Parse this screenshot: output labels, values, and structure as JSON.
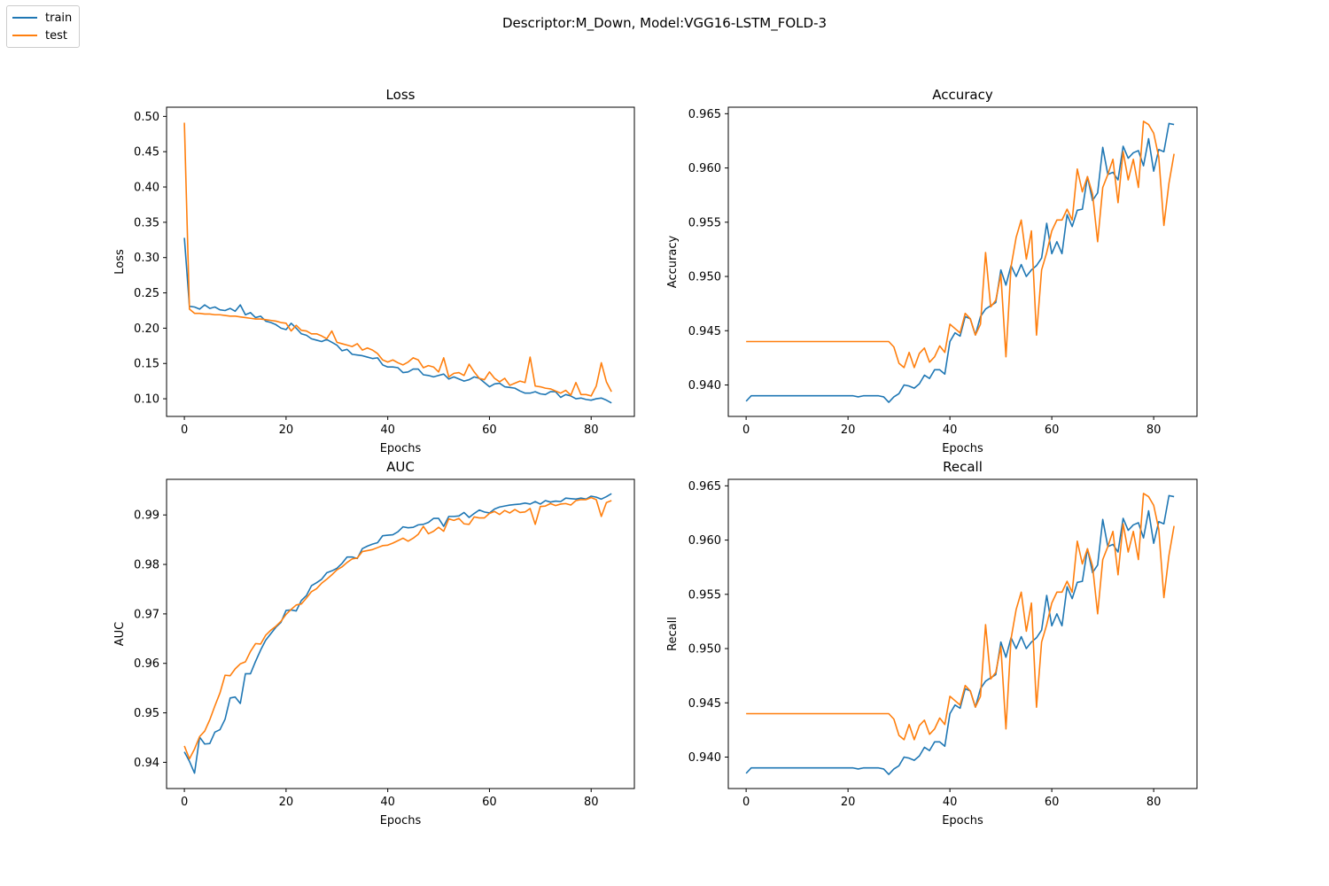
{
  "figure": {
    "suptitle": "Descriptor:M_Down, Model:VGG16-LSTM_FOLD-3",
    "legend": [
      {
        "label": "train",
        "color": "#1f77b4"
      },
      {
        "label": "test",
        "color": "#ff7f0e"
      }
    ]
  },
  "chart_data": [
    {
      "type": "line",
      "title": "Loss",
      "xlabel": "Epochs",
      "ylabel": "Loss",
      "xlim": [
        -3.5,
        88.5
      ],
      "ylim": [
        0.075,
        0.513
      ],
      "xticks": [
        0,
        20,
        40,
        60,
        80
      ],
      "yticks": [
        0.1,
        0.15,
        0.2,
        0.25,
        0.3,
        0.35,
        0.4,
        0.45,
        0.5
      ],
      "ytick_labels": [
        "0.10",
        "0.15",
        "0.20",
        "0.25",
        "0.30",
        "0.35",
        "0.40",
        "0.45",
        "0.50"
      ],
      "series": [
        {
          "name": "train",
          "color": "#1f77b4",
          "values": [
            0.328,
            0.231,
            0.23,
            0.227,
            0.233,
            0.228,
            0.23,
            0.226,
            0.225,
            0.228,
            0.224,
            0.233,
            0.219,
            0.222,
            0.215,
            0.217,
            0.21,
            0.208,
            0.205,
            0.2,
            0.198,
            0.207,
            0.2,
            0.192,
            0.19,
            0.185,
            0.183,
            0.181,
            0.184,
            0.18,
            0.176,
            0.168,
            0.17,
            0.163,
            0.162,
            0.161,
            0.159,
            0.157,
            0.158,
            0.148,
            0.145,
            0.145,
            0.144,
            0.137,
            0.138,
            0.142,
            0.142,
            0.134,
            0.133,
            0.131,
            0.133,
            0.135,
            0.128,
            0.131,
            0.128,
            0.125,
            0.127,
            0.131,
            0.129,
            0.123,
            0.117,
            0.121,
            0.122,
            0.117,
            0.116,
            0.115,
            0.111,
            0.108,
            0.108,
            0.11,
            0.107,
            0.106,
            0.11,
            0.11,
            0.102,
            0.106,
            0.104,
            0.1,
            0.101,
            0.099,
            0.098,
            0.1,
            0.101,
            0.098,
            0.094
          ]
        },
        {
          "name": "test",
          "color": "#ff7f0e",
          "values": [
            0.491,
            0.227,
            0.221,
            0.221,
            0.22,
            0.22,
            0.219,
            0.219,
            0.218,
            0.217,
            0.217,
            0.216,
            0.215,
            0.214,
            0.213,
            0.213,
            0.212,
            0.211,
            0.21,
            0.208,
            0.207,
            0.196,
            0.204,
            0.197,
            0.196,
            0.192,
            0.192,
            0.189,
            0.185,
            0.196,
            0.18,
            0.178,
            0.176,
            0.174,
            0.178,
            0.169,
            0.172,
            0.169,
            0.164,
            0.155,
            0.152,
            0.155,
            0.151,
            0.148,
            0.152,
            0.158,
            0.155,
            0.144,
            0.147,
            0.145,
            0.138,
            0.158,
            0.131,
            0.136,
            0.137,
            0.133,
            0.149,
            0.138,
            0.129,
            0.127,
            0.138,
            0.129,
            0.124,
            0.129,
            0.119,
            0.122,
            0.125,
            0.123,
            0.159,
            0.118,
            0.117,
            0.115,
            0.114,
            0.111,
            0.108,
            0.112,
            0.105,
            0.123,
            0.106,
            0.106,
            0.104,
            0.118,
            0.151,
            0.124,
            0.11
          ]
        }
      ]
    },
    {
      "type": "line",
      "title": "Accuracy",
      "xlabel": "Epochs",
      "ylabel": "Accuracy",
      "xlim": [
        -3.5,
        88.5
      ],
      "ylim": [
        0.9371,
        0.9656
      ],
      "xticks": [
        0,
        20,
        40,
        60,
        80
      ],
      "yticks": [
        0.94,
        0.945,
        0.95,
        0.955,
        0.96,
        0.965
      ],
      "ytick_labels": [
        "0.940",
        "0.945",
        "0.950",
        "0.955",
        "0.960",
        "0.965"
      ],
      "series": [
        {
          "name": "train",
          "color": "#1f77b4",
          "values": [
            0.9385,
            0.939,
            0.939,
            0.939,
            0.939,
            0.939,
            0.939,
            0.939,
            0.939,
            0.939,
            0.939,
            0.939,
            0.939,
            0.939,
            0.939,
            0.939,
            0.939,
            0.939,
            0.939,
            0.939,
            0.939,
            0.939,
            0.9389,
            0.939,
            0.939,
            0.939,
            0.939,
            0.9389,
            0.9384,
            0.9389,
            0.9392,
            0.94,
            0.9399,
            0.9397,
            0.9401,
            0.9409,
            0.9406,
            0.9414,
            0.9414,
            0.941,
            0.944,
            0.9448,
            0.9445,
            0.9463,
            0.9461,
            0.9446,
            0.9463,
            0.947,
            0.9473,
            0.9476,
            0.9506,
            0.9492,
            0.951,
            0.95,
            0.9511,
            0.95,
            0.9506,
            0.951,
            0.9517,
            0.9549,
            0.9521,
            0.9532,
            0.9521,
            0.9557,
            0.9546,
            0.9561,
            0.9562,
            0.9592,
            0.957,
            0.9577,
            0.9619,
            0.9594,
            0.9596,
            0.9589,
            0.962,
            0.9609,
            0.9614,
            0.9616,
            0.9602,
            0.9627,
            0.9597,
            0.9617,
            0.9615,
            0.9641,
            0.964
          ]
        },
        {
          "name": "test",
          "color": "#ff7f0e",
          "values": [
            0.944,
            0.944,
            0.944,
            0.944,
            0.944,
            0.944,
            0.944,
            0.944,
            0.944,
            0.944,
            0.944,
            0.944,
            0.944,
            0.944,
            0.944,
            0.944,
            0.944,
            0.944,
            0.944,
            0.944,
            0.944,
            0.944,
            0.944,
            0.944,
            0.944,
            0.944,
            0.944,
            0.944,
            0.944,
            0.9435,
            0.942,
            0.9416,
            0.943,
            0.9416,
            0.9429,
            0.9434,
            0.9421,
            0.9426,
            0.9436,
            0.943,
            0.9456,
            0.9452,
            0.9448,
            0.9466,
            0.9461,
            0.9446,
            0.9456,
            0.9522,
            0.9472,
            0.9478,
            0.9502,
            0.9426,
            0.9509,
            0.9536,
            0.9552,
            0.9516,
            0.9542,
            0.9446,
            0.9506,
            0.9522,
            0.9542,
            0.9552,
            0.9552,
            0.9562,
            0.9552,
            0.9599,
            0.9578,
            0.9592,
            0.9576,
            0.9532,
            0.9582,
            0.9594,
            0.9608,
            0.9568,
            0.9615,
            0.9589,
            0.9608,
            0.9582,
            0.9643,
            0.964,
            0.9632,
            0.961,
            0.9547,
            0.9586,
            0.9613
          ]
        }
      ]
    },
    {
      "type": "line",
      "title": "AUC",
      "xlabel": "Epochs",
      "ylabel": "AUC",
      "xlim": [
        -3.5,
        88.5
      ],
      "ylim": [
        0.9347,
        0.9972
      ],
      "xticks": [
        0,
        20,
        40,
        60,
        80
      ],
      "yticks": [
        0.94,
        0.95,
        0.96,
        0.97,
        0.98,
        0.99
      ],
      "ytick_labels": [
        "0.94",
        "0.95",
        "0.96",
        "0.97",
        "0.98",
        "0.99"
      ],
      "series": [
        {
          "name": "train",
          "color": "#1f77b4",
          "values": [
            0.9421,
            0.9402,
            0.9378,
            0.9451,
            0.9437,
            0.9438,
            0.9461,
            0.9466,
            0.9487,
            0.953,
            0.9532,
            0.9519,
            0.9579,
            0.9579,
            0.9604,
            0.9627,
            0.9647,
            0.966,
            0.9673,
            0.9683,
            0.9707,
            0.9708,
            0.9706,
            0.9727,
            0.9737,
            0.9757,
            0.9763,
            0.977,
            0.9783,
            0.9787,
            0.9792,
            0.9802,
            0.9815,
            0.9815,
            0.9812,
            0.9832,
            0.9837,
            0.9841,
            0.9844,
            0.9858,
            0.9859,
            0.986,
            0.9866,
            0.9876,
            0.9874,
            0.9875,
            0.988,
            0.9881,
            0.9885,
            0.9893,
            0.9893,
            0.9877,
            0.9897,
            0.9897,
            0.9898,
            0.9905,
            0.9895,
            0.9903,
            0.991,
            0.9906,
            0.9904,
            0.9912,
            0.9916,
            0.9918,
            0.992,
            0.9921,
            0.9922,
            0.9924,
            0.9922,
            0.9927,
            0.9922,
            0.9929,
            0.9926,
            0.9928,
            0.9927,
            0.9934,
            0.9933,
            0.9932,
            0.9934,
            0.9932,
            0.9938,
            0.9936,
            0.9932,
            0.9937,
            0.9943
          ]
        },
        {
          "name": "test",
          "color": "#ff7f0e",
          "values": [
            0.9433,
            0.9407,
            0.9427,
            0.9452,
            0.9463,
            0.9486,
            0.9514,
            0.954,
            0.9576,
            0.9575,
            0.9589,
            0.9599,
            0.9603,
            0.9624,
            0.964,
            0.9639,
            0.9657,
            0.9667,
            0.9675,
            0.9685,
            0.9699,
            0.9709,
            0.9718,
            0.972,
            0.9732,
            0.9745,
            0.9751,
            0.9762,
            0.977,
            0.9779,
            0.9789,
            0.9795,
            0.9804,
            0.9811,
            0.9813,
            0.9826,
            0.9828,
            0.983,
            0.9834,
            0.9838,
            0.9839,
            0.9843,
            0.9848,
            0.9853,
            0.9847,
            0.9853,
            0.9861,
            0.9877,
            0.9862,
            0.9867,
            0.9875,
            0.9867,
            0.9892,
            0.9889,
            0.9893,
            0.9882,
            0.9881,
            0.9896,
            0.9894,
            0.9894,
            0.9903,
            0.9907,
            0.9901,
            0.9909,
            0.9904,
            0.9911,
            0.9905,
            0.9906,
            0.9913,
            0.9881,
            0.9917,
            0.9918,
            0.9923,
            0.9919,
            0.9922,
            0.9923,
            0.992,
            0.9929,
            0.9931,
            0.9931,
            0.9935,
            0.9931,
            0.9897,
            0.9925,
            0.9929
          ]
        }
      ]
    },
    {
      "type": "line",
      "title": "Recall",
      "xlabel": "Epochs",
      "ylabel": "Recall",
      "xlim": [
        -3.5,
        88.5
      ],
      "ylim": [
        0.9371,
        0.9656
      ],
      "xticks": [
        0,
        20,
        40,
        60,
        80
      ],
      "yticks": [
        0.94,
        0.945,
        0.95,
        0.955,
        0.96,
        0.965
      ],
      "ytick_labels": [
        "0.940",
        "0.945",
        "0.950",
        "0.955",
        "0.960",
        "0.965"
      ],
      "series": [
        {
          "name": "train",
          "color": "#1f77b4",
          "values": [
            0.9385,
            0.939,
            0.939,
            0.939,
            0.939,
            0.939,
            0.939,
            0.939,
            0.939,
            0.939,
            0.939,
            0.939,
            0.939,
            0.939,
            0.939,
            0.939,
            0.939,
            0.939,
            0.939,
            0.939,
            0.939,
            0.939,
            0.9389,
            0.939,
            0.939,
            0.939,
            0.939,
            0.9389,
            0.9384,
            0.9389,
            0.9392,
            0.94,
            0.9399,
            0.9397,
            0.9401,
            0.9409,
            0.9406,
            0.9414,
            0.9414,
            0.941,
            0.944,
            0.9448,
            0.9445,
            0.9463,
            0.9461,
            0.9446,
            0.9463,
            0.947,
            0.9473,
            0.9476,
            0.9506,
            0.9492,
            0.951,
            0.95,
            0.9511,
            0.95,
            0.9506,
            0.951,
            0.9517,
            0.9549,
            0.9521,
            0.9532,
            0.9521,
            0.9557,
            0.9546,
            0.9561,
            0.9562,
            0.9592,
            0.957,
            0.9577,
            0.9619,
            0.9594,
            0.9596,
            0.9589,
            0.962,
            0.9609,
            0.9614,
            0.9616,
            0.9602,
            0.9627,
            0.9597,
            0.9617,
            0.9615,
            0.9641,
            0.964
          ]
        },
        {
          "name": "test",
          "color": "#ff7f0e",
          "values": [
            0.944,
            0.944,
            0.944,
            0.944,
            0.944,
            0.944,
            0.944,
            0.944,
            0.944,
            0.944,
            0.944,
            0.944,
            0.944,
            0.944,
            0.944,
            0.944,
            0.944,
            0.944,
            0.944,
            0.944,
            0.944,
            0.944,
            0.944,
            0.944,
            0.944,
            0.944,
            0.944,
            0.944,
            0.944,
            0.9435,
            0.942,
            0.9416,
            0.943,
            0.9416,
            0.9429,
            0.9434,
            0.9421,
            0.9426,
            0.9436,
            0.943,
            0.9456,
            0.9452,
            0.9448,
            0.9466,
            0.9461,
            0.9446,
            0.9456,
            0.9522,
            0.9472,
            0.9478,
            0.9502,
            0.9426,
            0.9509,
            0.9536,
            0.9552,
            0.9516,
            0.9542,
            0.9446,
            0.9506,
            0.9522,
            0.9542,
            0.9552,
            0.9552,
            0.9562,
            0.9552,
            0.9599,
            0.9578,
            0.9592,
            0.9576,
            0.9532,
            0.9582,
            0.9594,
            0.9608,
            0.9568,
            0.9615,
            0.9589,
            0.9608,
            0.9582,
            0.9643,
            0.964,
            0.9632,
            0.961,
            0.9547,
            0.9586,
            0.9613
          ]
        }
      ]
    }
  ]
}
